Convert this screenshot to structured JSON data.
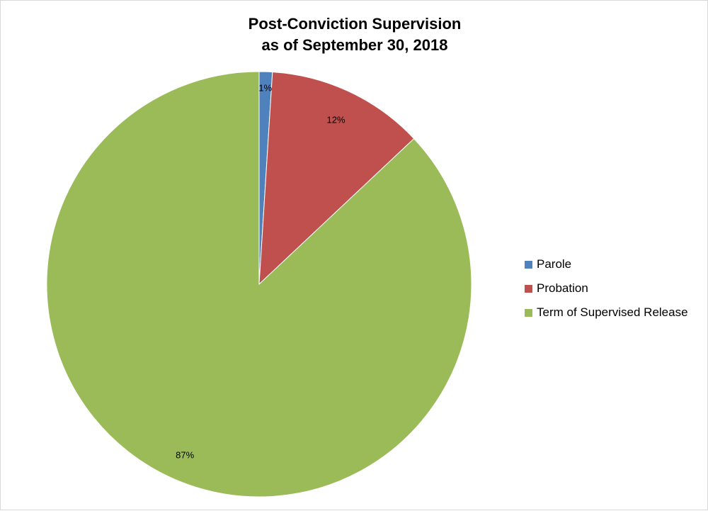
{
  "chart_data": {
    "type": "pie",
    "title": "Post-Conviction Supervision",
    "subtitle": "as of September 30, 2018",
    "categories": [
      "Parole",
      "Probation",
      "Term of Supervised Release"
    ],
    "values": [
      1,
      12,
      87
    ],
    "labels": [
      "1%",
      "12%",
      "87%"
    ],
    "colors": [
      "#4f81bd",
      "#c0504d",
      "#9bbb59"
    ],
    "legend": "right"
  }
}
